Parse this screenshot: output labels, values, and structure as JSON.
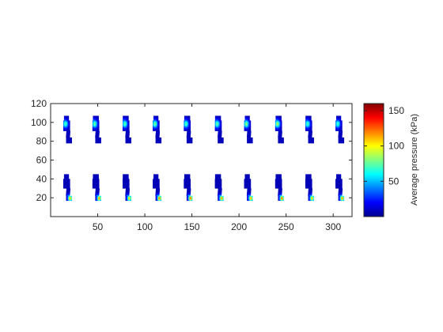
{
  "chart_data": {
    "type": "heatmap",
    "title": "",
    "xlabel": "",
    "ylabel": "",
    "xlim": [
      0,
      320
    ],
    "ylim": [
      0,
      120
    ],
    "xticks": [
      50,
      100,
      150,
      200,
      250,
      300
    ],
    "yticks": [
      20,
      40,
      60,
      80,
      100,
      120
    ],
    "xtick_labels": [
      "50",
      "100",
      "150",
      "200",
      "250",
      "300"
    ],
    "ytick_labels": [
      "20",
      "40",
      "60",
      "80",
      "100",
      "120"
    ],
    "grid": false,
    "colormap": "jet",
    "colorbar": {
      "label": "Average pressure (kPa)",
      "range": [
        0,
        160
      ],
      "ticks": [
        50,
        100,
        150
      ],
      "tick_labels": [
        "50",
        "100",
        "150"
      ]
    },
    "footprints": {
      "upper_row": {
        "x": [
          18,
          49,
          81,
          113,
          146,
          179,
          210,
          243,
          275,
          307
        ],
        "y_range": [
          78,
          106
        ],
        "peak_kPa": [
          65,
          70,
          68,
          72,
          66,
          70,
          75,
          80,
          66,
          64
        ]
      },
      "lower_row": {
        "x": [
          18,
          49,
          81,
          113,
          146,
          179,
          210,
          243,
          275,
          307
        ],
        "y_range": [
          17,
          44
        ],
        "peak_kPa": [
          105,
          110,
          100,
          115,
          120,
          112,
          108,
          118,
          104,
          110
        ]
      }
    },
    "colors": {
      "background_cmap_min": "#00008f",
      "cmap_mid": "#80ff80",
      "cmap_max": "#800000"
    }
  }
}
